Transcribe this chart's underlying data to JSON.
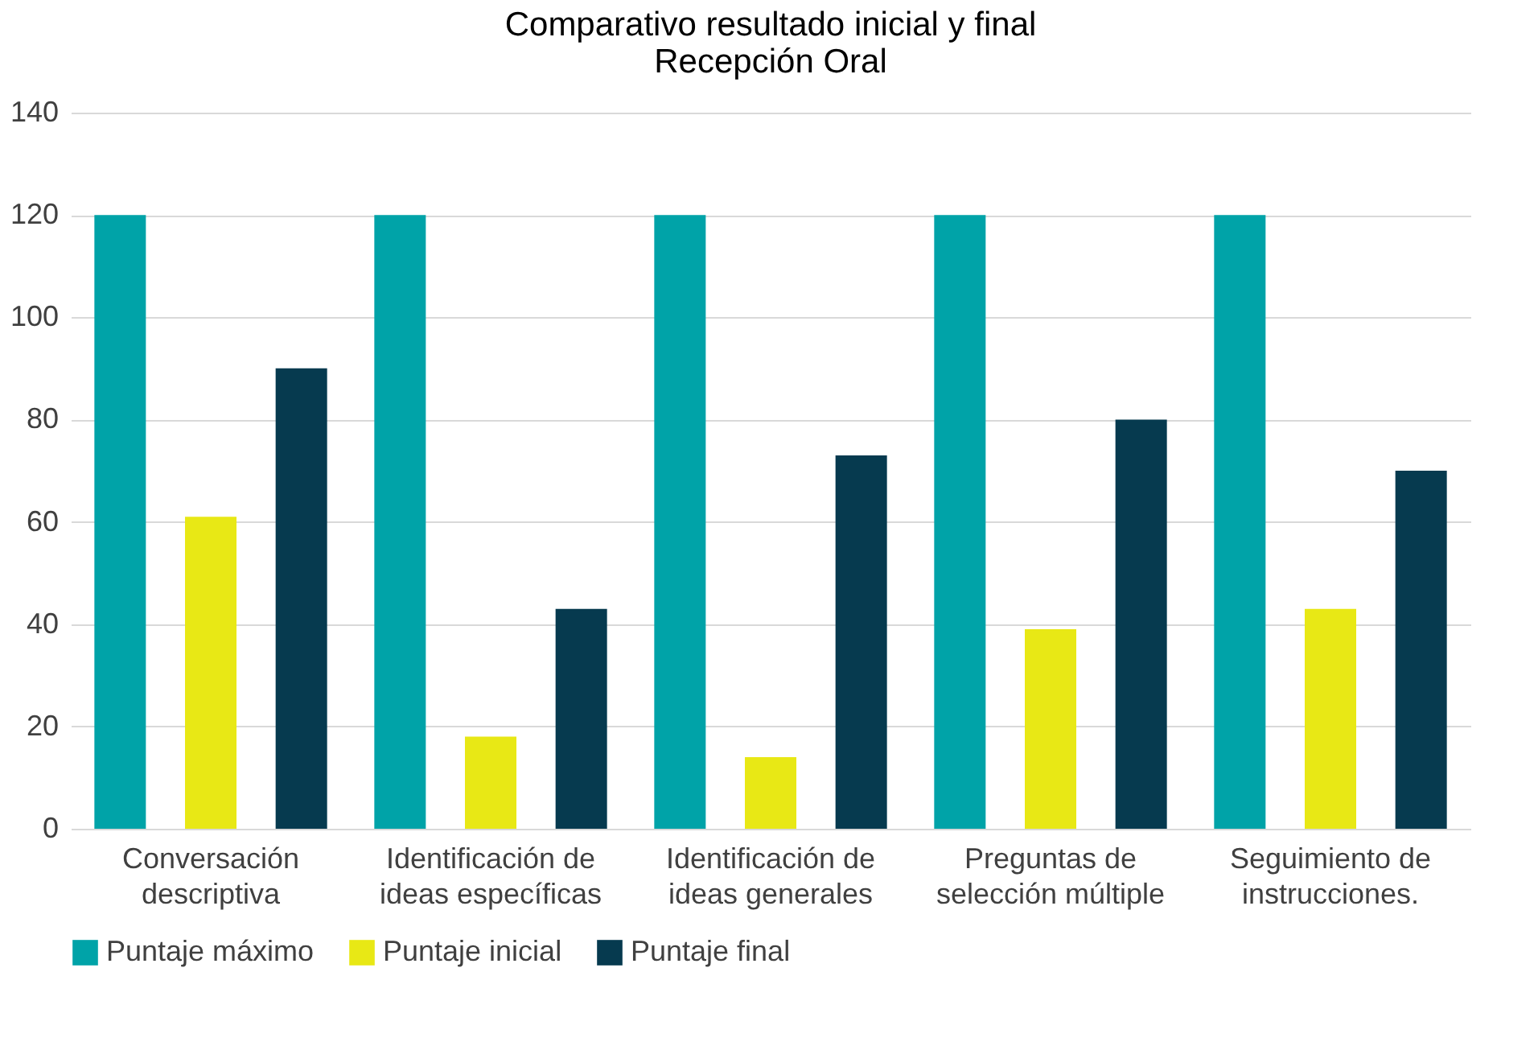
{
  "chart_data": {
    "type": "bar",
    "title": "Comparativo resultado inicial y final\nRecepción Oral",
    "categories": [
      "Conversación\ndescriptiva",
      "Identificación de\nideas específicas",
      "Identificación de\nideas generales",
      "Preguntas de\nselección múltiple",
      "Seguimiento de\ninstrucciones."
    ],
    "series": [
      {
        "name": "Puntaje máximo",
        "color": "#00a3a8",
        "values": [
          120,
          120,
          120,
          120,
          120
        ]
      },
      {
        "name": "Puntaje inicial",
        "color": "#e8e815",
        "values": [
          61,
          18,
          14,
          39,
          43
        ]
      },
      {
        "name": "Puntaje final",
        "color": "#063a4f",
        "values": [
          90,
          43,
          73,
          80,
          70
        ]
      }
    ],
    "ylim": [
      0,
      140
    ],
    "yticks": [
      0,
      20,
      40,
      60,
      80,
      100,
      120,
      140
    ],
    "grid": "y",
    "legend": "bottom"
  }
}
